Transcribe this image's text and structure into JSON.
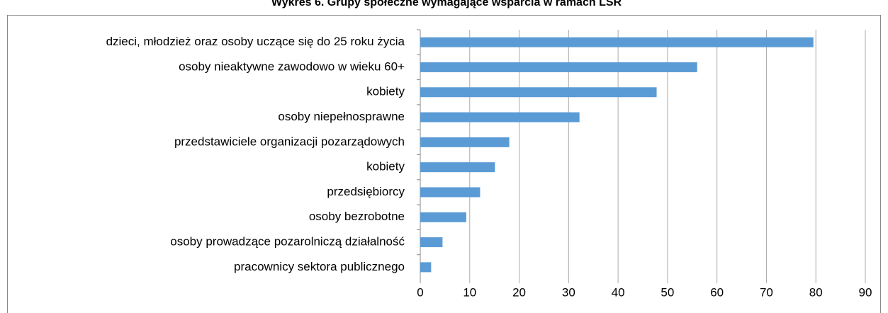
{
  "chart_data": {
    "type": "bar",
    "orientation": "horizontal",
    "title": "Wykres 6. Grupy społeczne wymagające wsparcia w ramach LSR",
    "categories": [
      "dzieci, młodzież oraz osoby uczące się do 25 roku życia",
      "osoby nieaktywne zawodowo w wieku 60+",
      "kobiety",
      "osoby niepełnosprawne",
      "przedstawiciele organizacji pozarządowych",
      "kobiety",
      "przedsiębiorcy",
      "osoby bezrobotne",
      "osoby prowadzące pozarolniczą działalność",
      "pracownicy sektora publicznego"
    ],
    "values": [
      79.5,
      56,
      47.8,
      32.2,
      18,
      15.1,
      12.1,
      9.3,
      4.5,
      2.2
    ],
    "color": "#5b9bd5",
    "xlim": [
      0,
      90
    ],
    "xticks": [
      0,
      10,
      20,
      30,
      40,
      50,
      60,
      70,
      80,
      90
    ],
    "grid": true
  }
}
